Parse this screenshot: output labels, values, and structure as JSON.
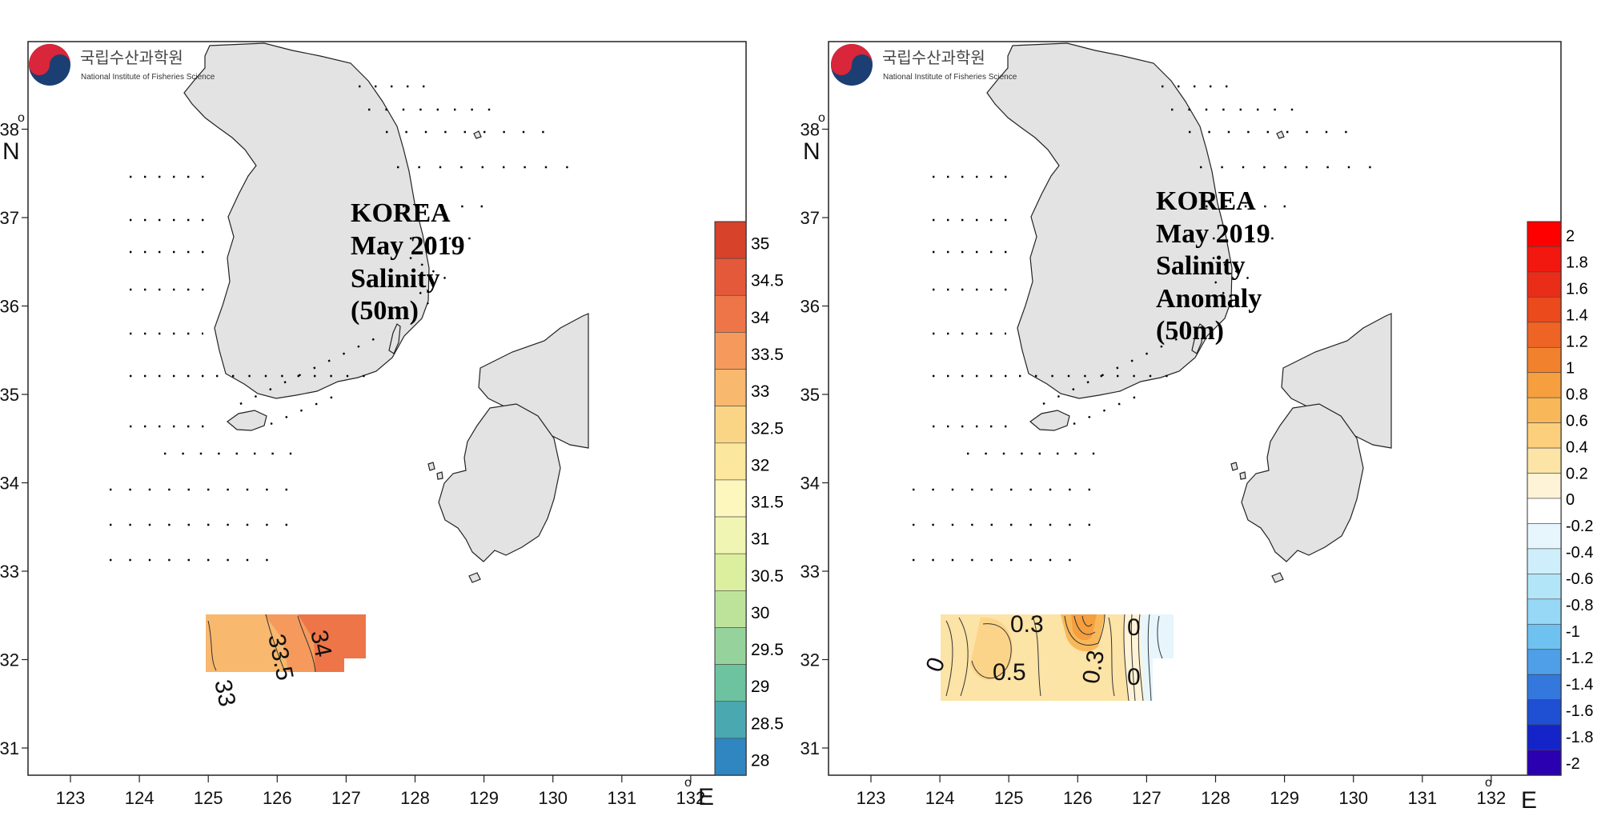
{
  "logo": {
    "korean": "국립수산과학원",
    "english": "National Institute of Fisheries Science"
  },
  "axes": {
    "x_ticks": [
      "123",
      "124",
      "125",
      "126",
      "127",
      "128",
      "129",
      "130",
      "131",
      "132"
    ],
    "x_unit": "E",
    "y_ticks": [
      "31",
      "32",
      "33",
      "34",
      "35",
      "36",
      "37",
      "38"
    ],
    "y_unit": "N",
    "degree_symbol": "o"
  },
  "left_panel": {
    "title_lines": [
      "KOREA",
      "May 2019",
      "Salinity",
      "(50m)"
    ],
    "contour_labels": [
      "33",
      "33.5",
      "34"
    ],
    "colorbar_labels": [
      "35",
      "34.5",
      "34",
      "33.5",
      "33",
      "32.5",
      "32",
      "31.5",
      "31",
      "30.5",
      "30",
      "29.5",
      "29",
      "28.5",
      "28"
    ],
    "colorbar_colors": [
      "#d7422b",
      "#e4593a",
      "#ee7548",
      "#f59a5c",
      "#f8b86e",
      "#fad586",
      "#fbe79e",
      "#fdf7bd",
      "#f0f5b3",
      "#dcef9e",
      "#bde39b",
      "#96d39c",
      "#6dc2a0",
      "#4aa9b0",
      "#2f86c0"
    ]
  },
  "right_panel": {
    "title_lines": [
      "KOREA",
      "May 2019",
      "Salinity",
      "Anomaly",
      "(50m)"
    ],
    "contour_labels": [
      "0.3",
      "0.5",
      "0.3",
      "0",
      "0",
      "0"
    ],
    "colorbar_labels": [
      "2",
      "1.8",
      "1.6",
      "1.4",
      "1.2",
      "1",
      "0.8",
      "0.6",
      "0.4",
      "0.2",
      "0",
      "-0.2",
      "-0.4",
      "-0.6",
      "-0.8",
      "-1",
      "-1.2",
      "-1.4",
      "-1.6",
      "-1.8",
      "-2"
    ],
    "colorbar_colors": [
      "#ff0000",
      "#f2180f",
      "#ea2d18",
      "#ea4a1c",
      "#ee6424",
      "#f2812e",
      "#f59f3f",
      "#f8b859",
      "#fbcf7b",
      "#fce3a6",
      "#fef3d6",
      "#ffffff",
      "#e6f6fc",
      "#cdeefa",
      "#b3e5f8",
      "#96d8f6",
      "#6fc1f0",
      "#4f9ee8",
      "#3478dd",
      "#1f4fd2",
      "#1524c8",
      "#2a00b0"
    ]
  }
}
